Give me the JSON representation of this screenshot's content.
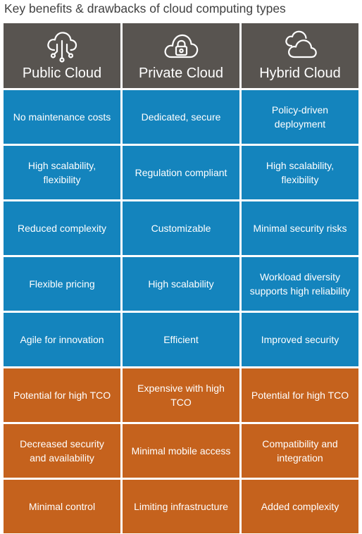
{
  "title": "Key benefits & drawbacks of cloud computing types",
  "columns": [
    {
      "label": "Public Cloud",
      "icon": "cloud-network-icon"
    },
    {
      "label": "Private Cloud",
      "icon": "cloud-lock-icon"
    },
    {
      "label": "Hybrid Cloud",
      "icon": "double-cloud-icon"
    }
  ],
  "colors": {
    "header": "#585450",
    "benefit": "#1484bd",
    "drawback": "#c5621d"
  },
  "benefits": [
    [
      "No maintenance costs",
      "Dedicated, secure",
      "Policy-driven deployment"
    ],
    [
      "High scalability, flexibility",
      "Regulation compliant",
      "High scalability, flexibility"
    ],
    [
      "Reduced complexity",
      "Customizable",
      "Minimal security risks"
    ],
    [
      "Flexible pricing",
      "High scalability",
      "Workload diversity supports high reliability"
    ],
    [
      "Agile for innovation",
      "Efficient",
      "Improved security"
    ]
  ],
  "drawbacks": [
    [
      "Potential for high TCO",
      "Expensive with high TCO",
      "Potential for high TCO"
    ],
    [
      "Decreased security and availability",
      "Minimal mobile access",
      "Compatibility and integration"
    ],
    [
      "Minimal control",
      "Limiting infrastructure",
      "Added complexity"
    ]
  ]
}
